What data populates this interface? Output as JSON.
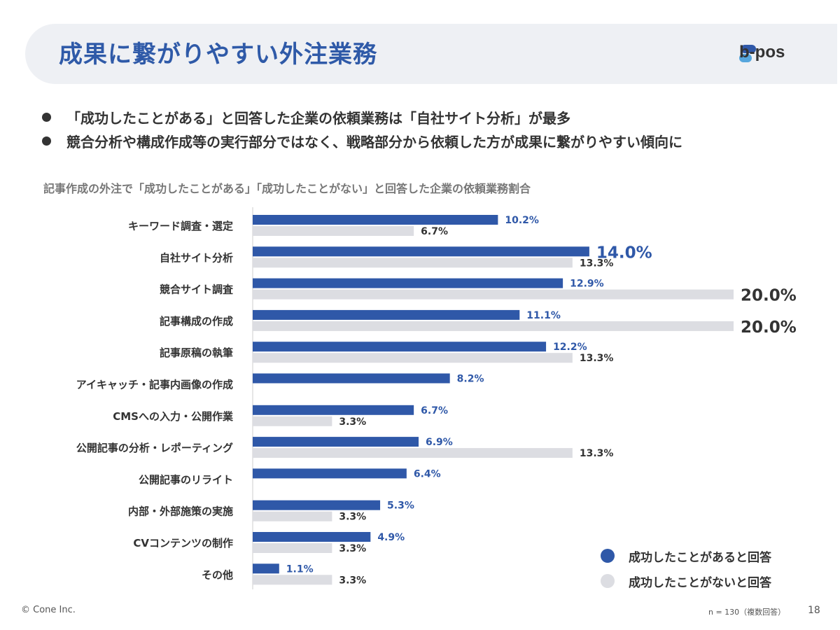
{
  "header": {
    "title": "成果に繋がりやすい外注業務",
    "brand": "b-pos"
  },
  "bullets": [
    "「成功したことがある」と回答した企業の依頼業務は「自社サイト分析」が最多",
    "競合分析や構成作成等の実行部分ではなく、戦略部分から依頼した方が成果に繋がりやすい傾向に"
  ],
  "chart_data": {
    "type": "bar",
    "orientation": "horizontal",
    "title": "記事作成の外注で「成功したことがある」「成功したことがない」と回答した企業の依頼業務割合",
    "categories": [
      "キーワード調査・選定",
      "自社サイト分析",
      "競合サイト調査",
      "記事構成の作成",
      "記事原稿の執筆",
      "アイキャッチ・記事内画像の作成",
      "CMSへの入力・公開作業",
      "公開記事の分析・レポーティング",
      "公開記事のリライト",
      "内部・外部施策の実施",
      "CVコンテンツの制作",
      "その他"
    ],
    "series": [
      {
        "name": "成功したことがあると回答",
        "color": "#2f58a8",
        "values": [
          10.2,
          14.0,
          12.9,
          11.1,
          12.2,
          8.2,
          6.7,
          6.9,
          6.4,
          5.3,
          4.9,
          1.1
        ],
        "labels": [
          "10.2%",
          "14.0%",
          "12.9%",
          "11.1%",
          "12.2%",
          "8.2%",
          "6.7%",
          "6.9%",
          "6.4%",
          "5.3%",
          "4.9%",
          "1.1%"
        ]
      },
      {
        "name": "成功したことがないと回答",
        "color": "#dcdde2",
        "values": [
          6.7,
          13.3,
          20.0,
          20.0,
          13.3,
          null,
          3.3,
          13.3,
          null,
          3.3,
          3.3,
          3.3
        ],
        "labels": [
          "6.7%",
          "13.3%",
          "20.0%",
          "20.0%",
          "13.3%",
          "",
          "3.3%",
          "13.3%",
          "",
          "3.3%",
          "3.3%",
          "3.3%"
        ]
      }
    ],
    "highlighted_labels": [
      "14.0%",
      "20.0%"
    ],
    "xlim": [
      0,
      20
    ],
    "legend_position": "bottom-right"
  },
  "legend": {
    "items": [
      {
        "label": "成功したことがあると回答",
        "color": "#2f58a8"
      },
      {
        "label": "成功したことがないと回答",
        "color": "#dcdde2"
      }
    ]
  },
  "footer": {
    "copyright": "© Cone Inc.",
    "note": "n = 130（複数回答）",
    "page": "18"
  }
}
